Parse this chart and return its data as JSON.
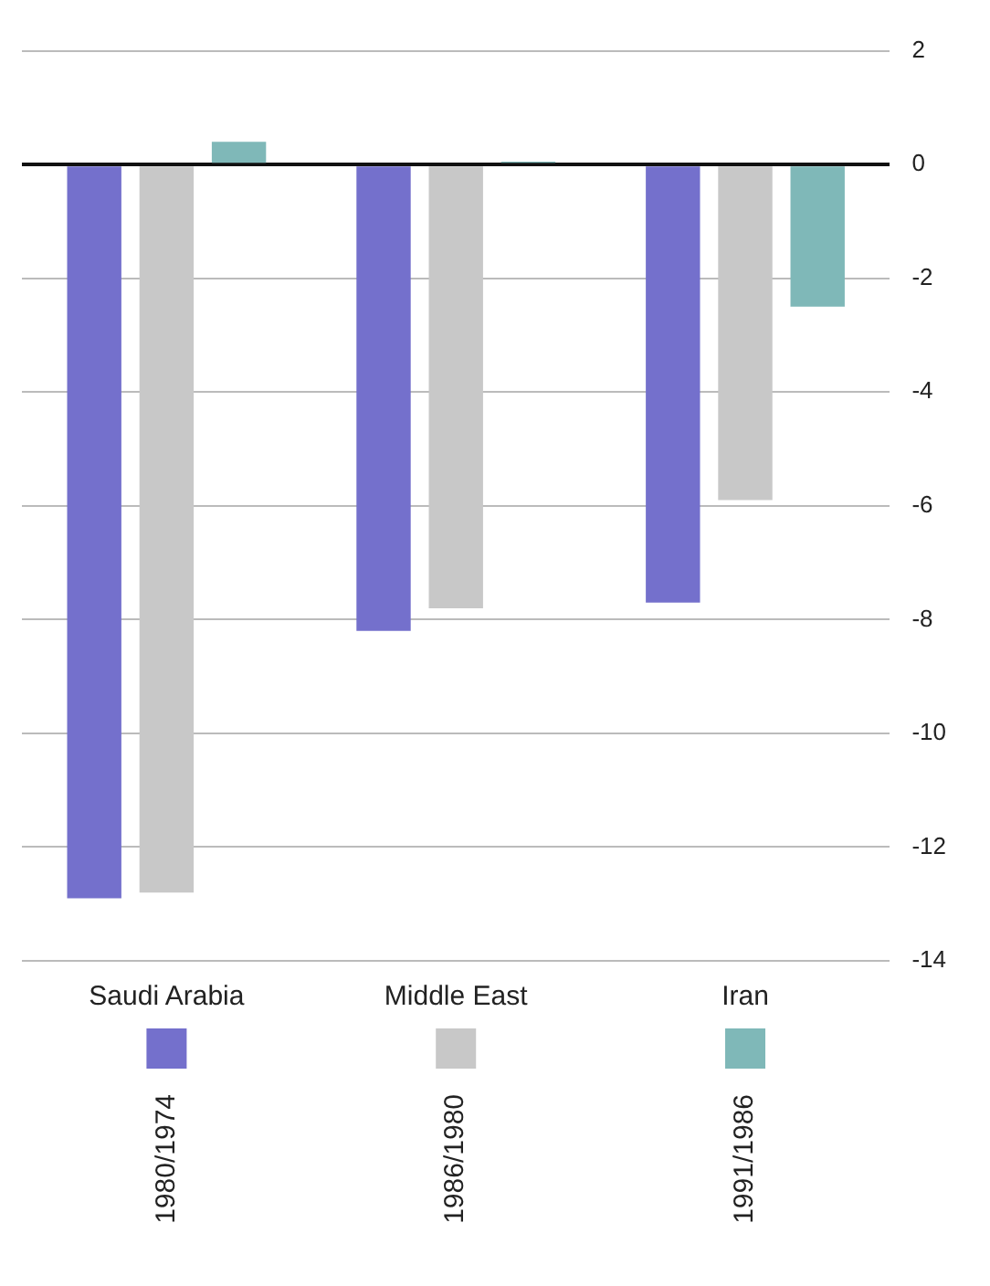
{
  "chart_data": {
    "type": "bar",
    "categories": [
      "Saudi Arabia",
      "Middle East",
      "Iran"
    ],
    "series": [
      {
        "name": "1980/1974",
        "color": "#7470cc",
        "values": [
          -12.9,
          -8.2,
          -7.7
        ]
      },
      {
        "name": "1986/1980",
        "color": "#c8c8c8",
        "values": [
          -12.8,
          -7.8,
          -5.9
        ]
      },
      {
        "name": "1991/1986",
        "color": "#7fb8b8",
        "values": [
          0.4,
          0.05,
          -2.5
        ]
      }
    ],
    "ylim": [
      -14,
      2
    ],
    "yticks": [
      2,
      0,
      -2,
      -4,
      -6,
      -8,
      -10,
      -12,
      -14
    ],
    "grid": "y",
    "legend": "bottom"
  }
}
